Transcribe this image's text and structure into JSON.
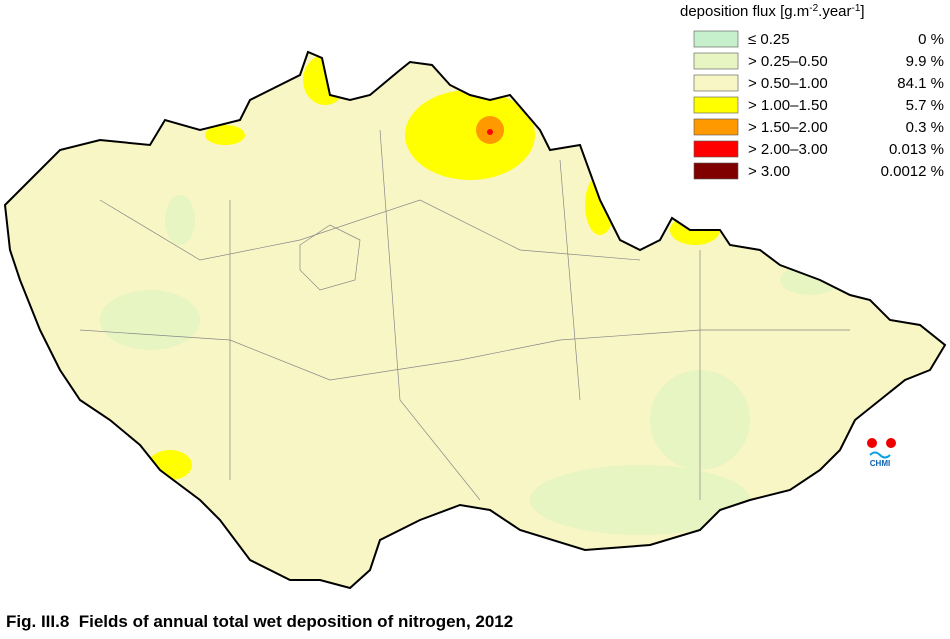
{
  "legend": {
    "title": [
      "deposition flux [g.m",
      "-2",
      ".year",
      "-1",
      "]"
    ],
    "items": [
      {
        "label": "≤ 0.25",
        "percent": "0 %",
        "color": "#c6f0cc"
      },
      {
        "label": "> 0.25–0.50",
        "percent": "9.9 %",
        "color": "#e6f5c2"
      },
      {
        "label": "> 0.50–1.00",
        "percent": "84.1 %",
        "color": "#f8f6c4"
      },
      {
        "label": "> 1.00–1.50",
        "percent": "5.7 %",
        "color": "#ffff00"
      },
      {
        "label": "> 1.50–2.00",
        "percent": "0.3 %",
        "color": "#ff9900"
      },
      {
        "label": "> 2.00–3.00",
        "percent": "0.013 %",
        "color": "#ff0000"
      },
      {
        "label": "> 3.00",
        "percent": "0.0012 %",
        "color": "#800000"
      }
    ]
  },
  "logo": "CHMI",
  "caption": "Fig. III.8  Fields of annual total wet deposition of nitrogen, 2012"
}
